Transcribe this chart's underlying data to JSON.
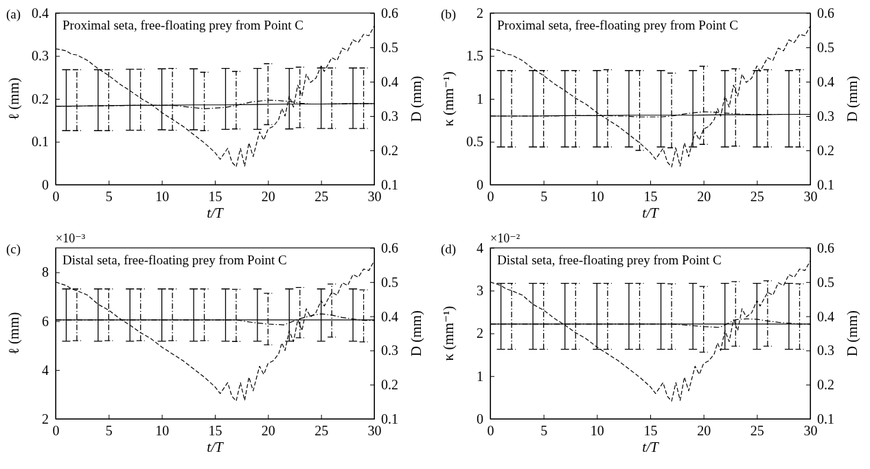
{
  "chart_data": [
    {
      "type": "line",
      "title": "Proximal seta, free-floating prey from Point C",
      "annotations": [
        "(a)"
      ],
      "xlabel": "t/T",
      "ylabel": "ℓ (mm)",
      "y2label": "D (mm)",
      "xlim": [
        0,
        30
      ],
      "xticks": [
        0,
        5,
        10,
        15,
        20,
        25,
        30
      ],
      "ylim": [
        0,
        0.4
      ],
      "yticks": [
        0,
        0.1,
        0.2,
        0.3,
        0.4
      ],
      "y2lim": [
        0.1,
        0.6
      ],
      "y2ticks": [
        0.1,
        0.2,
        0.3,
        0.4,
        0.5,
        0.6
      ],
      "series": [
        {
          "color": "#000000",
          "line_style": "solid",
          "x": [
            0,
            1,
            4,
            7,
            10,
            13,
            16,
            19,
            22,
            25,
            28,
            30
          ],
          "values": [
            0.183,
            0.183,
            0.184,
            0.185,
            0.185,
            0.186,
            0.186,
            0.187,
            0.188,
            0.188,
            0.189,
            0.189
          ],
          "errors": [
            null,
            [
              0.126,
              0.268
            ],
            [
              0.126,
              0.268
            ],
            [
              0.127,
              0.269
            ],
            [
              0.128,
              0.27
            ],
            [
              0.128,
              0.27
            ],
            [
              0.129,
              0.271
            ],
            [
              0.129,
              0.271
            ],
            [
              0.13,
              0.271
            ],
            [
              0.131,
              0.272
            ],
            [
              0.131,
              0.272
            ],
            null
          ]
        },
        {
          "color": "#000000",
          "line_style": "dotted",
          "x": [
            0,
            2,
            5,
            8,
            11,
            12.5,
            14,
            16,
            17,
            18.5,
            20,
            21,
            22,
            23,
            24,
            26,
            29,
            30
          ],
          "values": [
            0.183,
            0.183,
            0.184,
            0.185,
            0.185,
            0.181,
            0.177,
            0.18,
            0.185,
            0.193,
            0.197,
            0.196,
            0.194,
            0.19,
            0.188,
            0.188,
            0.189,
            0.189
          ],
          "errors": [
            null,
            [
              0.126,
              0.268
            ],
            [
              0.126,
              0.268
            ],
            [
              0.127,
              0.269
            ],
            [
              0.127,
              0.271
            ],
            null,
            [
              0.126,
              0.262
            ],
            null,
            [
              0.13,
              0.264
            ],
            null,
            [
              0.14,
              0.282
            ],
            null,
            null,
            [
              0.133,
              0.274
            ],
            null,
            [
              0.131,
              0.272
            ],
            [
              0.131,
              0.272
            ],
            null
          ]
        },
        {
          "color": "#000000",
          "line_style": "dashed",
          "axis": "y2",
          "x": [
            0,
            1,
            1.5,
            2,
            3,
            4,
            5,
            6,
            7,
            8,
            9,
            10,
            11,
            12,
            13,
            14,
            15,
            15.5,
            16.2,
            16.6,
            17,
            17.4,
            17.8,
            18.2,
            18.6,
            19.2,
            19.6,
            20,
            20.5,
            21,
            21.3,
            21.6,
            22,
            22.4,
            22.8,
            23.2,
            23.6,
            24,
            24.5,
            25,
            25.3,
            26,
            26.5,
            27,
            27.5,
            28,
            28.5,
            29,
            29.5,
            30
          ],
          "values": [
            0.496,
            0.49,
            0.48,
            0.478,
            0.462,
            0.438,
            0.418,
            0.394,
            0.374,
            0.352,
            0.334,
            0.31,
            0.29,
            0.27,
            0.246,
            0.222,
            0.194,
            0.174,
            0.206,
            0.166,
            0.152,
            0.206,
            0.154,
            0.222,
            0.182,
            0.254,
            0.23,
            0.262,
            0.27,
            0.29,
            0.322,
            0.3,
            0.358,
            0.326,
            0.39,
            0.358,
            0.422,
            0.398,
            0.41,
            0.446,
            0.43,
            0.47,
            0.462,
            0.498,
            0.49,
            0.522,
            0.514,
            0.538,
            0.534,
            0.562
          ]
        }
      ]
    },
    {
      "type": "line",
      "title": "Proximal seta, free-floating prey from Point C",
      "annotations": [
        "(b)"
      ],
      "xlabel": "t/T",
      "ylabel": "κ (mm⁻¹)",
      "y2label": "D (mm)",
      "xlim": [
        0,
        30
      ],
      "xticks": [
        0,
        5,
        10,
        15,
        20,
        25,
        30
      ],
      "ylim": [
        0,
        2
      ],
      "yticks": [
        0,
        0.5,
        1,
        1.5,
        2
      ],
      "y2lim": [
        0.1,
        0.6
      ],
      "y2ticks": [
        0.1,
        0.2,
        0.3,
        0.4,
        0.5,
        0.6
      ],
      "series": [
        {
          "color": "#000000",
          "line_style": "solid",
          "x": [
            0,
            1,
            4,
            7,
            10,
            13,
            16,
            19,
            22,
            25,
            28,
            30
          ],
          "values": [
            0.8,
            0.8,
            0.8,
            0.805,
            0.805,
            0.81,
            0.81,
            0.81,
            0.815,
            0.815,
            0.82,
            0.82
          ],
          "errors": [
            null,
            [
              0.44,
              1.33
            ],
            [
              0.44,
              1.33
            ],
            [
              0.44,
              1.33
            ],
            [
              0.44,
              1.33
            ],
            [
              0.44,
              1.33
            ],
            [
              0.44,
              1.33
            ],
            [
              0.44,
              1.33
            ],
            [
              0.44,
              1.33
            ],
            [
              0.44,
              1.33
            ],
            [
              0.44,
              1.33
            ],
            null
          ]
        },
        {
          "color": "#000000",
          "line_style": "dotted",
          "x": [
            0,
            2,
            5,
            8,
            11,
            12.5,
            14,
            16,
            17,
            18.5,
            20,
            21,
            22,
            23,
            24,
            26,
            29,
            30
          ],
          "values": [
            0.8,
            0.8,
            0.8,
            0.805,
            0.805,
            0.8,
            0.79,
            0.79,
            0.8,
            0.83,
            0.85,
            0.845,
            0.835,
            0.825,
            0.82,
            0.82,
            0.82,
            0.82
          ],
          "errors": [
            null,
            [
              0.44,
              1.33
            ],
            [
              0.44,
              1.33
            ],
            [
              0.44,
              1.33
            ],
            [
              0.44,
              1.34
            ],
            null,
            [
              0.4,
              1.33
            ],
            null,
            [
              0.43,
              1.3
            ],
            null,
            [
              0.47,
              1.38
            ],
            null,
            null,
            [
              0.45,
              1.35
            ],
            null,
            [
              0.44,
              1.34
            ],
            [
              0.44,
              1.34
            ],
            null
          ]
        },
        {
          "color": "#000000",
          "line_style": "dashed",
          "axis": "y2",
          "x": [
            0,
            1,
            1.5,
            2,
            3,
            4,
            5,
            6,
            7,
            8,
            9,
            10,
            11,
            12,
            13,
            14,
            15,
            15.5,
            16.2,
            16.6,
            17,
            17.4,
            17.8,
            18.2,
            18.6,
            19.2,
            19.6,
            20,
            20.5,
            21,
            21.3,
            21.6,
            22,
            22.4,
            22.8,
            23.2,
            23.6,
            24,
            24.5,
            25,
            25.3,
            26,
            26.5,
            27,
            27.5,
            28,
            28.5,
            29,
            29.5,
            30
          ],
          "values": [
            0.496,
            0.49,
            0.48,
            0.478,
            0.462,
            0.438,
            0.418,
            0.394,
            0.374,
            0.352,
            0.334,
            0.31,
            0.29,
            0.27,
            0.246,
            0.222,
            0.194,
            0.174,
            0.206,
            0.166,
            0.152,
            0.206,
            0.154,
            0.222,
            0.182,
            0.254,
            0.23,
            0.262,
            0.27,
            0.29,
            0.322,
            0.3,
            0.358,
            0.326,
            0.39,
            0.358,
            0.422,
            0.398,
            0.41,
            0.446,
            0.43,
            0.47,
            0.462,
            0.498,
            0.49,
            0.522,
            0.514,
            0.538,
            0.534,
            0.562
          ]
        }
      ]
    },
    {
      "type": "line",
      "title": "Distal seta, free-floating prey from Point C",
      "annotations": [
        "(c)",
        "×10⁻³"
      ],
      "xlabel": "t/T",
      "ylabel": "ℓ (mm)",
      "y2label": "D (mm)",
      "xlim": [
        0,
        30
      ],
      "xticks": [
        0,
        5,
        10,
        15,
        20,
        25,
        30
      ],
      "ylim": [
        2,
        9
      ],
      "yticks": [
        2,
        4,
        6,
        8
      ],
      "y2lim": [
        0.1,
        0.6
      ],
      "y2ticks": [
        0.1,
        0.2,
        0.3,
        0.4,
        0.5,
        0.6
      ],
      "series": [
        {
          "color": "#000000",
          "line_style": "solid",
          "x": [
            0,
            1,
            4,
            7,
            10,
            13,
            16,
            19,
            22,
            25,
            28,
            30
          ],
          "values": [
            6.05,
            6.05,
            6.05,
            6.05,
            6.05,
            6.05,
            6.05,
            6.05,
            6.05,
            6.05,
            6.05,
            6.05
          ],
          "errors": [
            null,
            [
              5.18,
              7.32
            ],
            [
              5.18,
              7.32
            ],
            [
              5.18,
              7.32
            ],
            [
              5.18,
              7.32
            ],
            [
              5.18,
              7.32
            ],
            [
              5.18,
              7.32
            ],
            [
              5.18,
              7.32
            ],
            [
              5.18,
              7.32
            ],
            [
              5.18,
              7.32
            ],
            [
              5.18,
              7.32
            ],
            null
          ]
        },
        {
          "color": "#000000",
          "line_style": "dotted",
          "x": [
            0,
            2,
            5,
            8,
            11,
            14,
            17,
            18.5,
            20,
            21.5,
            23,
            24,
            25,
            26,
            27,
            29,
            30
          ],
          "values": [
            6.05,
            6.05,
            6.05,
            6.05,
            6.05,
            6.05,
            6.05,
            5.95,
            5.88,
            5.85,
            6.1,
            6.22,
            6.3,
            6.25,
            6.15,
            6.03,
            6.03
          ],
          "errors": [
            null,
            [
              5.2,
              7.32
            ],
            [
              5.2,
              7.32
            ],
            [
              5.2,
              7.32
            ],
            [
              5.2,
              7.32
            ],
            [
              5.2,
              7.32
            ],
            [
              5.17,
              7.3
            ],
            null,
            [
              5.03,
              7.14
            ],
            null,
            [
              5.32,
              7.38
            ],
            null,
            null,
            [
              5.35,
              7.52
            ],
            null,
            [
              5.15,
              7.28
            ],
            null
          ]
        },
        {
          "color": "#000000",
          "line_style": "dashed",
          "axis": "y2",
          "x": [
            0,
            1,
            1.5,
            2,
            3,
            4,
            5,
            6,
            7,
            8,
            9,
            10,
            11,
            12,
            13,
            14,
            15,
            15.5,
            16.2,
            16.6,
            17,
            17.4,
            17.8,
            18.2,
            18.6,
            19.2,
            19.6,
            20,
            20.5,
            21,
            21.3,
            21.6,
            22,
            22.4,
            22.8,
            23.2,
            23.6,
            24,
            24.5,
            25,
            25.3,
            26,
            26.5,
            27,
            27.5,
            28,
            28.5,
            29,
            29.5,
            30
          ],
          "values": [
            0.5,
            0.49,
            0.48,
            0.475,
            0.462,
            0.435,
            0.418,
            0.394,
            0.374,
            0.352,
            0.334,
            0.31,
            0.29,
            0.27,
            0.246,
            0.222,
            0.194,
            0.174,
            0.206,
            0.166,
            0.152,
            0.206,
            0.154,
            0.222,
            0.182,
            0.254,
            0.23,
            0.262,
            0.27,
            0.29,
            0.322,
            0.3,
            0.358,
            0.326,
            0.39,
            0.358,
            0.422,
            0.398,
            0.41,
            0.446,
            0.43,
            0.47,
            0.462,
            0.498,
            0.49,
            0.522,
            0.514,
            0.538,
            0.534,
            0.562
          ]
        }
      ]
    },
    {
      "type": "line",
      "title": "Distal seta, free-floating prey from Point C",
      "annotations": [
        "(d)",
        "×10⁻²"
      ],
      "xlabel": "t/T",
      "ylabel": "κ (mm⁻¹)",
      "y2label": "D (mm)",
      "xlim": [
        0,
        30
      ],
      "xticks": [
        0,
        5,
        10,
        15,
        20,
        25,
        30
      ],
      "ylim": [
        0,
        4
      ],
      "yticks": [
        0,
        1,
        2,
        3,
        4
      ],
      "y2lim": [
        0.1,
        0.6
      ],
      "y2ticks": [
        0.1,
        0.2,
        0.3,
        0.4,
        0.5,
        0.6
      ],
      "series": [
        {
          "color": "#000000",
          "line_style": "solid",
          "x": [
            0,
            1,
            4,
            7,
            10,
            13,
            16,
            19,
            22,
            25,
            28,
            30
          ],
          "values": [
            2.22,
            2.22,
            2.22,
            2.22,
            2.22,
            2.22,
            2.22,
            2.22,
            2.22,
            2.22,
            2.22,
            2.22
          ],
          "errors": [
            null,
            [
              1.63,
              3.17
            ],
            [
              1.63,
              3.17
            ],
            [
              1.63,
              3.17
            ],
            [
              1.63,
              3.17
            ],
            [
              1.63,
              3.17
            ],
            [
              1.63,
              3.17
            ],
            [
              1.63,
              3.17
            ],
            [
              1.63,
              3.17
            ],
            [
              1.63,
              3.17
            ],
            [
              1.63,
              3.17
            ],
            null
          ]
        },
        {
          "color": "#000000",
          "line_style": "dotted",
          "x": [
            0,
            2,
            5,
            8,
            11,
            14,
            17,
            18.5,
            20,
            21.5,
            23,
            24,
            25,
            26,
            27,
            29,
            30
          ],
          "values": [
            2.22,
            2.22,
            2.22,
            2.22,
            2.22,
            2.22,
            2.22,
            2.19,
            2.16,
            2.14,
            2.32,
            2.34,
            2.33,
            2.29,
            2.26,
            2.22,
            2.22
          ],
          "errors": [
            null,
            [
              1.63,
              3.17
            ],
            [
              1.63,
              3.17
            ],
            [
              1.63,
              3.17
            ],
            [
              1.63,
              3.17
            ],
            [
              1.63,
              3.17
            ],
            [
              1.63,
              3.16
            ],
            null,
            [
              1.56,
              3.1
            ],
            null,
            [
              1.7,
              3.21
            ],
            null,
            null,
            [
              1.7,
              3.23
            ],
            null,
            [
              1.63,
              3.16
            ],
            null
          ]
        },
        {
          "color": "#000000",
          "line_style": "dashed",
          "axis": "y2",
          "x": [
            0,
            1,
            1.5,
            2,
            3,
            4,
            5,
            6,
            7,
            8,
            9,
            10,
            11,
            12,
            13,
            14,
            15,
            15.5,
            16.2,
            16.6,
            17,
            17.4,
            17.8,
            18.2,
            18.6,
            19.2,
            19.6,
            20,
            20.5,
            21,
            21.3,
            21.6,
            22,
            22.4,
            22.8,
            23.2,
            23.6,
            24,
            24.5,
            25,
            25.3,
            26,
            26.5,
            27,
            27.5,
            28,
            28.5,
            29,
            29.5,
            30
          ],
          "values": [
            0.5,
            0.49,
            0.48,
            0.475,
            0.462,
            0.435,
            0.418,
            0.394,
            0.374,
            0.352,
            0.334,
            0.31,
            0.29,
            0.27,
            0.246,
            0.222,
            0.194,
            0.174,
            0.206,
            0.166,
            0.152,
            0.206,
            0.154,
            0.222,
            0.182,
            0.254,
            0.23,
            0.262,
            0.27,
            0.29,
            0.322,
            0.3,
            0.358,
            0.326,
            0.39,
            0.358,
            0.422,
            0.398,
            0.41,
            0.446,
            0.43,
            0.47,
            0.462,
            0.498,
            0.49,
            0.522,
            0.514,
            0.538,
            0.534,
            0.562
          ]
        }
      ]
    }
  ]
}
